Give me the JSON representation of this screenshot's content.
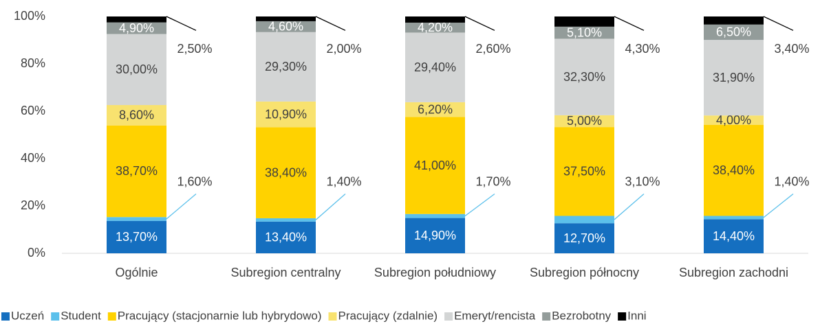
{
  "chart_data": {
    "type": "stacked_bar",
    "categories": [
      "Ogólnie",
      "Subregion centralny",
      "Subregion południowy",
      "Subregion północny",
      "Subregion zachodni"
    ],
    "series": [
      {
        "name": "Uczeń",
        "color": "#156fc0",
        "values": [
          13.7,
          13.4,
          14.9,
          12.7,
          14.4
        ],
        "value_labels": [
          "13,70%",
          "13,40%",
          "14,90%",
          "12,70%",
          "14,40%"
        ]
      },
      {
        "name": "Student",
        "color": "#5bc0eb",
        "values": [
          1.6,
          1.4,
          1.7,
          3.1,
          1.4
        ],
        "value_labels": [
          "1,60%",
          "1,40%",
          "1,70%",
          "3,10%",
          "1,40%"
        ]
      },
      {
        "name": "Pracujący (stacjonarnie lub hybrydowo)",
        "color": "#ffd200",
        "values": [
          38.7,
          38.4,
          41.0,
          37.5,
          38.4
        ],
        "value_labels": [
          "38,70%",
          "38,40%",
          "41,00%",
          "37,50%",
          "38,40%"
        ]
      },
      {
        "name": "Pracujący (zdalnie)",
        "color": "#f8e26f",
        "values": [
          8.6,
          10.9,
          6.2,
          5.0,
          4.0
        ],
        "value_labels": [
          "8,60%",
          "10,90%",
          "6,20%",
          "5,00%",
          "4,00%"
        ]
      },
      {
        "name": "Emeryt/rencista",
        "color": "#d3d5d5",
        "values": [
          30.0,
          29.3,
          29.4,
          32.3,
          31.9
        ],
        "value_labels": [
          "30,00%",
          "29,30%",
          "29,40%",
          "32,30%",
          "31,90%"
        ]
      },
      {
        "name": "Bezrobotny",
        "color": "#939c9a",
        "values": [
          4.9,
          4.6,
          4.2,
          5.1,
          6.5
        ],
        "value_labels": [
          "4,90%",
          "4,60%",
          "4,20%",
          "5,10%",
          "6,50%"
        ]
      },
      {
        "name": "Inni",
        "color": "#000000",
        "values": [
          2.5,
          2.0,
          2.6,
          4.3,
          3.4
        ],
        "value_labels": [
          "2,50%",
          "2,00%",
          "2,60%",
          "4,30%",
          "3,40%"
        ]
      }
    ],
    "ylim": [
      0,
      100
    ],
    "yticks": [
      {
        "value": 0,
        "label": "0%"
      },
      {
        "value": 20,
        "label": "20%"
      },
      {
        "value": 40,
        "label": "40%"
      },
      {
        "value": 60,
        "label": "60%"
      },
      {
        "value": 80,
        "label": "80%"
      },
      {
        "value": 100,
        "label": "100%"
      }
    ],
    "grid": false,
    "legend": "bottom"
  }
}
